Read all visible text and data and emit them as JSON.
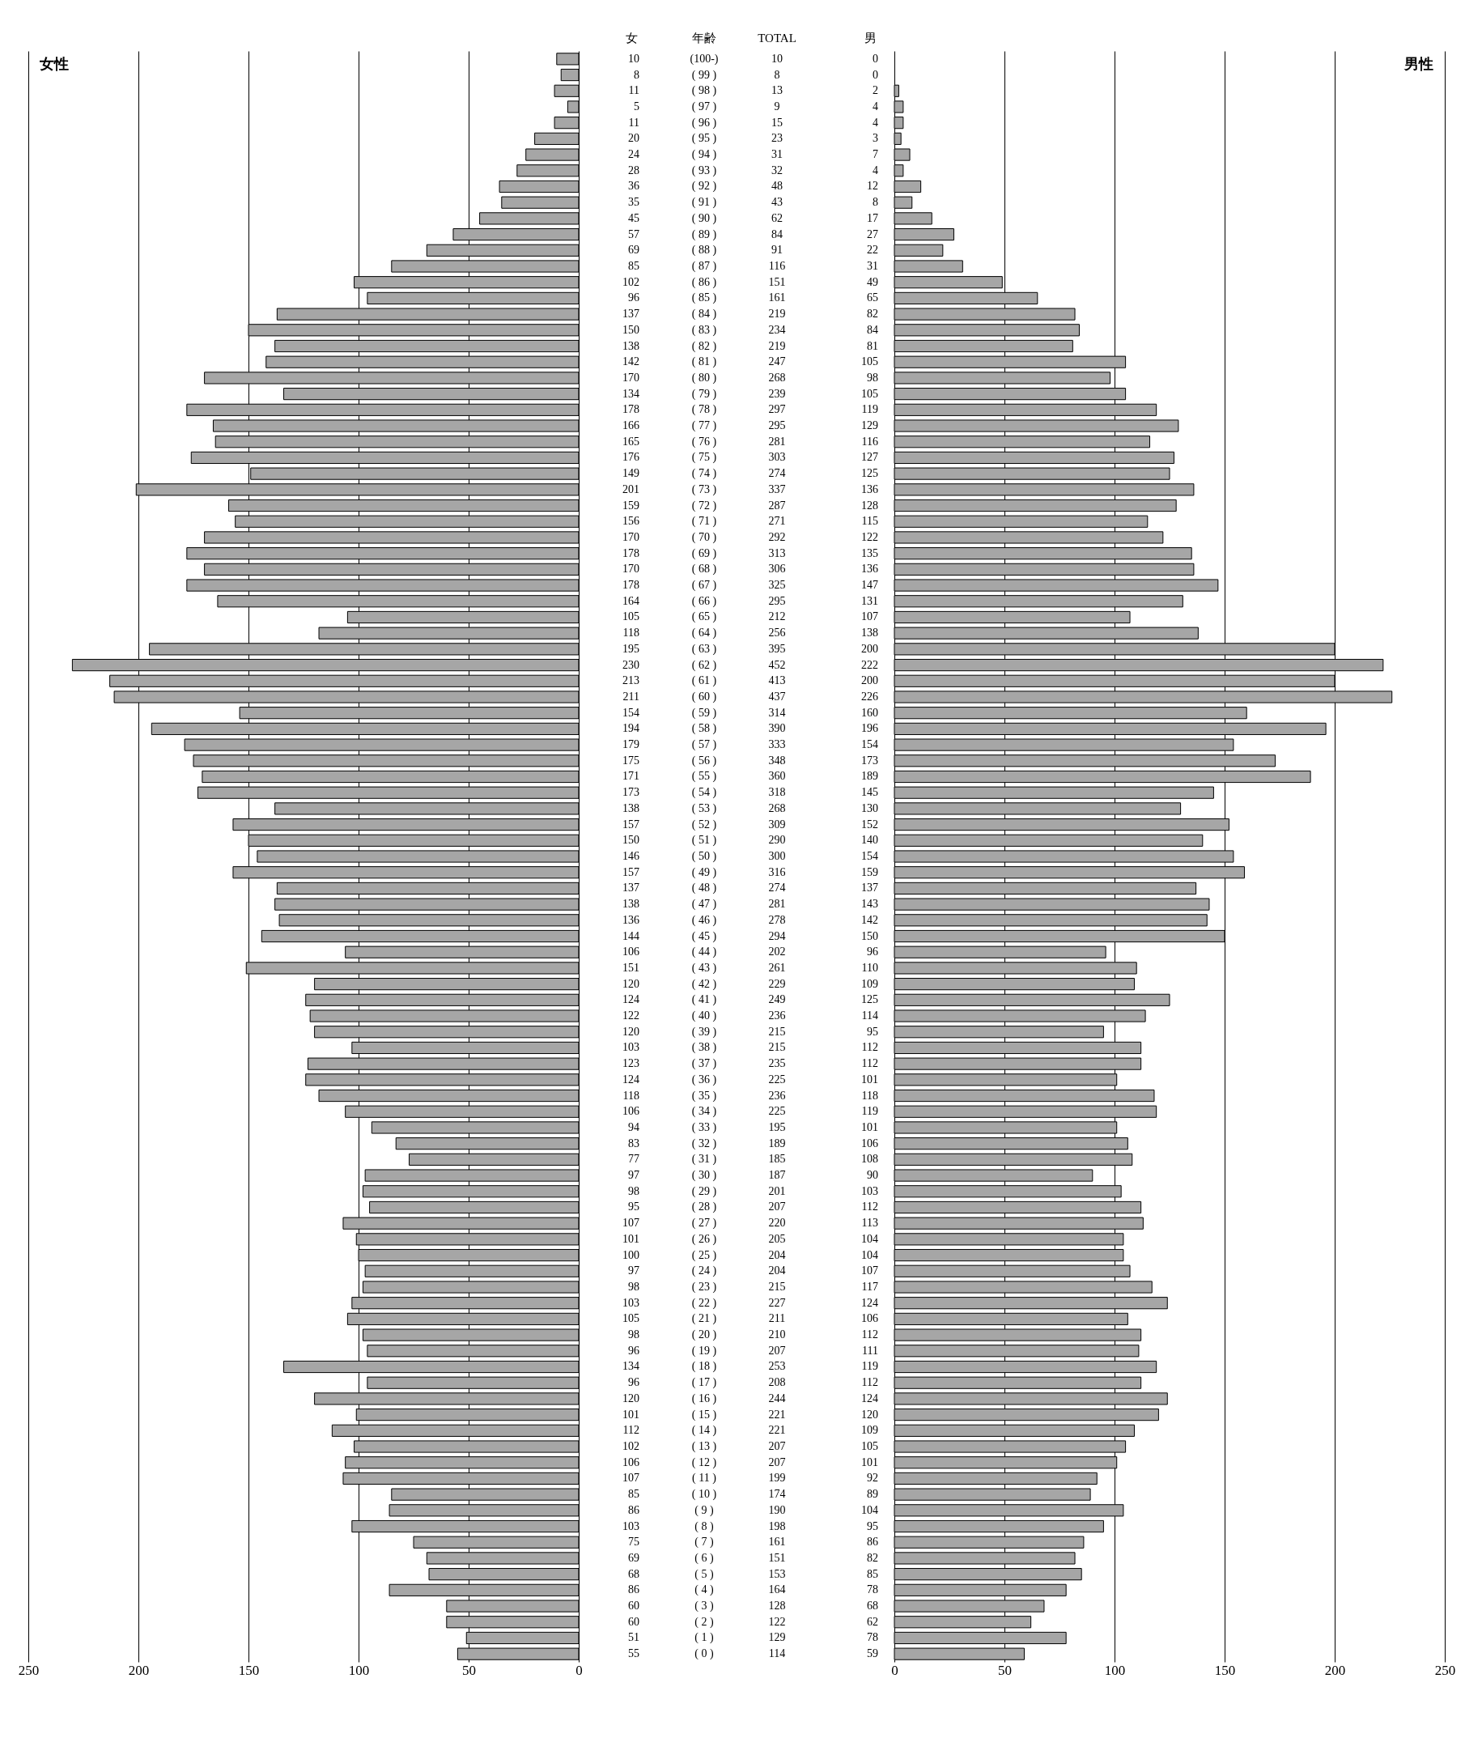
{
  "chart_data": [
    {
      "type": "bar",
      "orientation": "horizontal",
      "annotations": [
        "女",
        "年齢"
      ],
      "data_labels": true,
      "grid": "x",
      "xlim": [
        250,
        0
      ],
      "xticks": [
        250,
        200,
        150,
        100,
        50,
        0
      ],
      "categories": [
        "(100-)",
        "( 99 )",
        "( 98 )",
        "( 97 )",
        "( 96 )",
        "( 95 )",
        "( 94 )",
        "( 93 )",
        "( 92 )",
        "( 91 )",
        "( 90 )",
        "( 89 )",
        "( 88 )",
        "( 87 )",
        "( 86 )",
        "( 85 )",
        "( 84 )",
        "( 83 )",
        "( 82 )",
        "( 81 )",
        "( 80 )",
        "( 79 )",
        "( 78 )",
        "( 77 )",
        "( 76 )",
        "( 75 )",
        "( 74 )",
        "( 73 )",
        "( 72 )",
        "( 71 )",
        "( 70 )",
        "( 69 )",
        "( 68 )",
        "( 67 )",
        "( 66 )",
        "( 65 )",
        "( 64 )",
        "( 63 )",
        "( 62 )",
        "( 61 )",
        "( 60 )",
        "( 59 )",
        "( 58 )",
        "( 57 )",
        "( 56 )",
        "( 55 )",
        "( 54 )",
        "( 53 )",
        "( 52 )",
        "( 51 )",
        "( 50 )",
        "( 49 )",
        "( 48 )",
        "( 47 )",
        "( 46 )",
        "( 45 )",
        "( 44 )",
        "( 43 )",
        "( 42 )",
        "( 41 )",
        "( 40 )",
        "( 39 )",
        "( 38 )",
        "( 37 )",
        "( 36 )",
        "( 35 )",
        "( 34 )",
        "( 33 )",
        "( 32 )",
        "( 31 )",
        "( 30 )",
        "( 29 )",
        "( 28 )",
        "( 27 )",
        "( 26 )",
        "( 25 )",
        "( 24 )",
        "( 23 )",
        "( 22 )",
        "( 21 )",
        "( 20 )",
        "( 19 )",
        "( 18 )",
        "( 17 )",
        "( 16 )",
        "( 15 )",
        "( 14 )",
        "( 13 )",
        "( 12 )",
        "( 11 )",
        "( 10 )",
        "( 9 )",
        "( 8 )",
        "( 7 )",
        "( 6 )",
        "( 5 )",
        "( 4 )",
        "( 3 )",
        "( 2 )",
        "( 1 )",
        "( 0 )"
      ],
      "series": [
        {
          "name": "女性",
          "color": "#a6a6a6",
          "values": [
            10,
            8,
            11,
            5,
            11,
            20,
            24,
            28,
            36,
            35,
            45,
            57,
            69,
            85,
            102,
            96,
            137,
            150,
            138,
            142,
            170,
            134,
            178,
            166,
            165,
            176,
            149,
            201,
            159,
            156,
            170,
            178,
            170,
            178,
            164,
            105,
            118,
            195,
            230,
            213,
            211,
            154,
            194,
            179,
            175,
            171,
            173,
            138,
            157,
            150,
            146,
            157,
            137,
            138,
            136,
            144,
            106,
            151,
            120,
            124,
            122,
            120,
            103,
            123,
            124,
            118,
            106,
            94,
            83,
            77,
            97,
            98,
            95,
            107,
            101,
            100,
            97,
            98,
            103,
            105,
            98,
            96,
            134,
            96,
            120,
            101,
            112,
            102,
            106,
            107,
            85,
            86,
            103,
            75,
            69,
            68,
            86,
            60,
            60,
            51,
            55
          ]
        }
      ]
    },
    {
      "type": "other",
      "annotations": [
        "TOTAL",
        "10",
        "8",
        "13",
        "9",
        "15",
        "23",
        "31",
        "32",
        "48",
        "43",
        "62",
        "84",
        "91",
        "116",
        "151",
        "161",
        "219",
        "234",
        "219",
        "247",
        "268",
        "239",
        "297",
        "295",
        "281",
        "303",
        "274",
        "337",
        "287",
        "271",
        "292",
        "313",
        "306",
        "325",
        "295",
        "212",
        "256",
        "395",
        "452",
        "413",
        "437",
        "314",
        "390",
        "333",
        "348",
        "360",
        "318",
        "268",
        "309",
        "290",
        "300",
        "316",
        "274",
        "281",
        "278",
        "294",
        "202",
        "261",
        "229",
        "249",
        "236",
        "215",
        "215",
        "235",
        "225",
        "236",
        "225",
        "195",
        "189",
        "185",
        "187",
        "201",
        "207",
        "220",
        "205",
        "204",
        "204",
        "215",
        "227",
        "211",
        "210",
        "207",
        "253",
        "208",
        "244",
        "221",
        "221",
        "207",
        "207",
        "199",
        "174",
        "190",
        "198",
        "161",
        "151",
        "153",
        "164",
        "128",
        "122",
        "129",
        "114"
      ]
    },
    {
      "type": "bar",
      "orientation": "horizontal",
      "annotations": [
        "男"
      ],
      "data_labels": true,
      "grid": "x",
      "xlim": [
        0,
        250
      ],
      "xticks": [
        0,
        50,
        100,
        150,
        200,
        250
      ],
      "categories": [
        null,
        null,
        null,
        null,
        null,
        null,
        null,
        null,
        null,
        null,
        null,
        null,
        null,
        null,
        null,
        null,
        null,
        null,
        null,
        null,
        null,
        null,
        null,
        null,
        null,
        null,
        null,
        null,
        null,
        null,
        null,
        null,
        null,
        null,
        null,
        null,
        null,
        null,
        null,
        null,
        null,
        null,
        null,
        null,
        null,
        null,
        null,
        null,
        null,
        null,
        null,
        null,
        null,
        null,
        null,
        null,
        null,
        null,
        null,
        null,
        null,
        null,
        null,
        null,
        null,
        null,
        null,
        null,
        null,
        null,
        null,
        null,
        null,
        null,
        null,
        null,
        null,
        null,
        null,
        null,
        null,
        null,
        null,
        null,
        null,
        null,
        null,
        null,
        null,
        null,
        null,
        null,
        null,
        null,
        null,
        null,
        null,
        null,
        null,
        null,
        null
      ],
      "series": [
        {
          "name": "男性",
          "color": "#a6a6a6",
          "values": [
            0,
            0,
            2,
            4,
            4,
            3,
            7,
            4,
            12,
            8,
            17,
            27,
            22,
            31,
            49,
            65,
            82,
            84,
            81,
            105,
            98,
            105,
            119,
            129,
            116,
            127,
            125,
            136,
            128,
            115,
            122,
            135,
            136,
            147,
            131,
            107,
            138,
            200,
            222,
            200,
            226,
            160,
            196,
            154,
            173,
            189,
            145,
            130,
            152,
            140,
            154,
            159,
            137,
            143,
            142,
            150,
            96,
            110,
            109,
            125,
            114,
            95,
            112,
            112,
            101,
            118,
            119,
            101,
            106,
            108,
            90,
            103,
            112,
            113,
            104,
            104,
            107,
            117,
            124,
            106,
            112,
            111,
            119,
            112,
            124,
            120,
            109,
            105,
            101,
            92,
            89,
            104,
            95,
            86,
            82,
            85,
            78,
            68,
            62,
            78,
            59
          ]
        }
      ]
    }
  ]
}
